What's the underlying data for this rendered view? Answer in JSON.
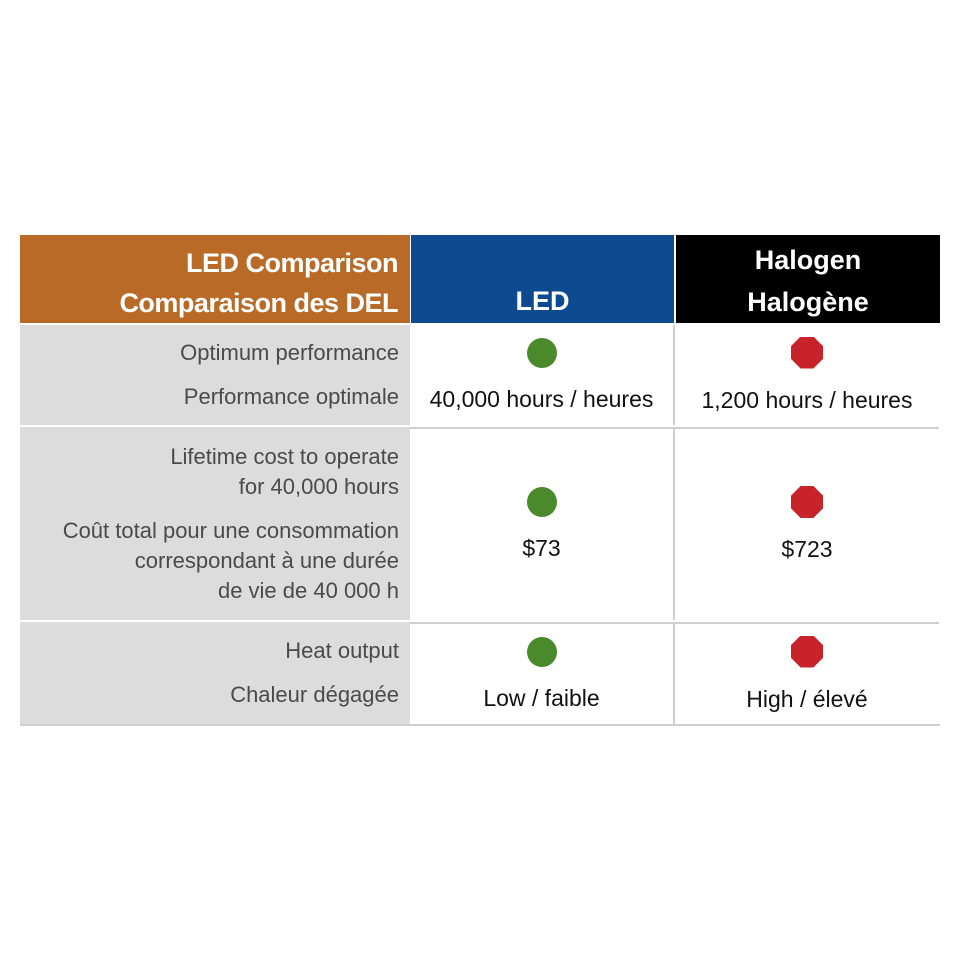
{
  "header": {
    "title_en": "LED Comparison",
    "title_fr": "Comparaison des DEL",
    "led": "LED",
    "halogen_en": "Halogen",
    "halogen_fr": "Halogène"
  },
  "colors": {
    "title_bg": "#b86a26",
    "led_bg": "#0d4a8f",
    "halogen_bg": "#000000",
    "good": "#4a8a2a",
    "bad": "#c8232a"
  },
  "rows": [
    {
      "label_en": [
        "Optimum performance"
      ],
      "label_fr": [
        "Performance optimale"
      ],
      "led_value": "40,000 hours / heures",
      "halogen_value": "1,200 hours / heures",
      "led_indicator": "green-circle-icon",
      "halogen_indicator": "red-octagon-icon"
    },
    {
      "label_en": [
        "Lifetime cost to operate",
        "for 40,000 hours"
      ],
      "label_fr": [
        "Coût total pour une consommation",
        "correspondant à une durée",
        "de vie de 40 000 h"
      ],
      "led_value": "$73",
      "halogen_value": "$723",
      "led_indicator": "green-circle-icon",
      "halogen_indicator": "red-octagon-icon"
    },
    {
      "label_en": [
        "Heat output"
      ],
      "label_fr": [
        "Chaleur dégagée"
      ],
      "led_value": "Low / faible",
      "halogen_value": "High / élevé",
      "led_indicator": "green-circle-icon",
      "halogen_indicator": "red-octagon-icon"
    }
  ]
}
